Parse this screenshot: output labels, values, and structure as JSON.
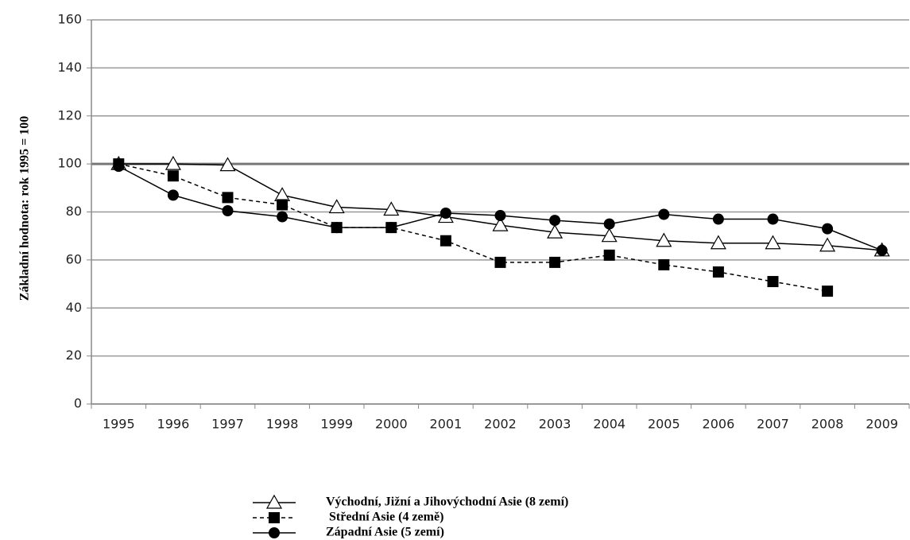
{
  "chart_data": {
    "type": "line",
    "ylabel": "Základní hodnota: rok 1995 = 100",
    "categories": [
      "1995",
      "1996",
      "1997",
      "1998",
      "1999",
      "2000",
      "2001",
      "2002",
      "2003",
      "2004",
      "2005",
      "2006",
      "2007",
      "2008",
      "2009"
    ],
    "series": [
      {
        "name": "Východní, Jižní a Jihovýchodní Asie (8 zemí)",
        "color": "#000000",
        "marker": "triangle",
        "dash": false,
        "values": [
          100,
          100,
          99.5,
          87,
          82,
          81,
          78,
          74.5,
          71.5,
          70,
          68,
          67,
          67,
          66,
          64
        ]
      },
      {
        "name": "Střední Asie (4 země)",
        "color": "#000000",
        "marker": "square",
        "dash": true,
        "values": [
          100,
          95,
          86,
          83,
          73.5,
          73.5,
          68,
          59,
          59,
          62,
          58,
          55,
          51,
          47,
          null
        ]
      },
      {
        "name": "Západní Asie (5 zemí)",
        "color": "#000000",
        "marker": "circle",
        "dash": false,
        "values": [
          99,
          87,
          80.5,
          78,
          73.5,
          73.5,
          79.5,
          78.5,
          76.5,
          75,
          79,
          77,
          77,
          73,
          64
        ]
      }
    ],
    "ylim": [
      0,
      160
    ],
    "yticks": [
      0,
      20,
      40,
      60,
      80,
      100,
      120,
      140,
      160
    ],
    "grid": true
  }
}
